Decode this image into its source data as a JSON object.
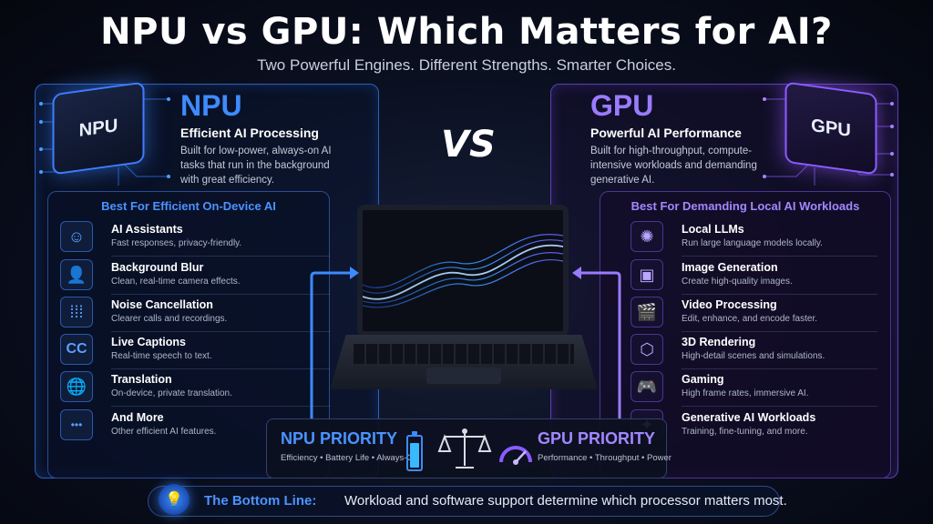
{
  "title": "NPU vs GPU: Which Matters for AI?",
  "subtitle": "Two Powerful Engines. Different Strengths. Smarter Choices.",
  "vs_label": "VS",
  "colors": {
    "npu_accent": "#3d8bff",
    "gpu_accent": "#9a7bff",
    "background": "#0a0f1f"
  },
  "npu": {
    "chip_label": "NPU",
    "heading": "NPU",
    "subheading": "Efficient AI Processing",
    "description": "Built for low-power, always-on AI tasks that run in the background with great efficiency.",
    "best_for": "Best For Efficient On-Device AI",
    "items": [
      {
        "icon": "chat-bubble-icon",
        "glyph": "☺",
        "title": "AI Assistants",
        "desc": "Fast responses, privacy-friendly."
      },
      {
        "icon": "person-icon",
        "glyph": "👤",
        "title": "Background Blur",
        "desc": "Clean, real-time camera effects."
      },
      {
        "icon": "sound-wave-icon",
        "glyph": "⁞⁞⁞",
        "title": "Noise Cancellation",
        "desc": "Clearer calls and recordings."
      },
      {
        "icon": "closed-captions-icon",
        "glyph": "CC",
        "title": "Live Captions",
        "desc": "Real-time speech to text."
      },
      {
        "icon": "globe-icon",
        "glyph": "🌐",
        "title": "Translation",
        "desc": "On-device, private translation."
      },
      {
        "icon": "more-dots-icon",
        "glyph": "•••",
        "title": "And More",
        "desc": "Other efficient AI features."
      }
    ]
  },
  "gpu": {
    "chip_label": "GPU",
    "heading": "GPU",
    "subheading": "Powerful AI Performance",
    "description": "Built for high-throughput, compute-intensive workloads and demanding generative AI.",
    "best_for": "Best For Demanding Local AI Workloads",
    "items": [
      {
        "icon": "brain-icon",
        "glyph": "✺",
        "title": "Local LLMs",
        "desc": "Run large language models locally."
      },
      {
        "icon": "image-icon",
        "glyph": "▣",
        "title": "Image Generation",
        "desc": "Create high-quality images."
      },
      {
        "icon": "clapperboard-icon",
        "glyph": "🎬",
        "title": "Video Processing",
        "desc": "Edit, enhance, and encode faster."
      },
      {
        "icon": "cube-icon",
        "glyph": "⬡",
        "title": "3D Rendering",
        "desc": "High-detail scenes and simulations."
      },
      {
        "icon": "gamepad-icon",
        "glyph": "🎮",
        "title": "Gaming",
        "desc": "High frame rates, immersive AI."
      },
      {
        "icon": "sparkles-icon",
        "glyph": "✦",
        "title": "Generative AI Workloads",
        "desc": "Training, fine-tuning, and more."
      }
    ]
  },
  "priority": {
    "npu_title": "NPU PRIORITY",
    "npu_desc": "Efficiency • Battery Life • Always-On",
    "gpu_title": "GPU PRIORITY",
    "gpu_desc": "Performance • Throughput • Power",
    "battery_level": 0.75
  },
  "bottom_line": {
    "label": "The Bottom Line:",
    "text": "Workload and software support determine which processor matters most."
  }
}
